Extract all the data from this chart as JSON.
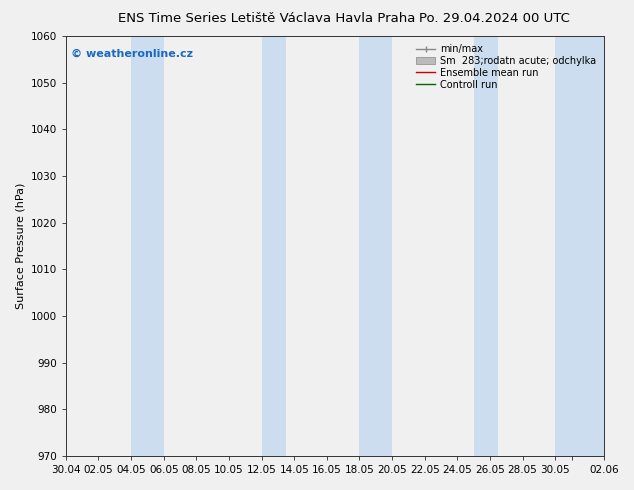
{
  "title_left": "ENS Time Series Letiště Václava Havla Praha",
  "title_right": "Po. 29.04.2024 00 UTC",
  "ylabel": "Surface Pressure (hPa)",
  "ylim": [
    970,
    1060
  ],
  "yticks": [
    970,
    980,
    990,
    1000,
    1010,
    1020,
    1030,
    1040,
    1050,
    1060
  ],
  "xtick_labels": [
    "30.04",
    "02.05",
    "04.05",
    "06.05",
    "08.05",
    "10.05",
    "12.05",
    "14.05",
    "16.05",
    "18.05",
    "20.05",
    "22.05",
    "24.05",
    "26.05",
    "28.05",
    "30.05",
    "",
    "02.06"
  ],
  "x_positions": [
    0,
    2,
    4,
    6,
    8,
    10,
    12,
    14,
    16,
    18,
    20,
    22,
    24,
    26,
    28,
    30,
    31,
    33
  ],
  "xlim": [
    0,
    33
  ],
  "watermark": "© weatheronline.cz",
  "legend_entries": [
    "min/max",
    "Sm  283;rodatn acute; odchylka",
    "Ensemble mean run",
    "Controll run"
  ],
  "bg_color": "#f0f0f0",
  "plot_bg_color": "#f0f0f0",
  "band_color": "#ccddf0",
  "band_positions_start": [
    4,
    12,
    18,
    25,
    30
  ],
  "band_positions_end": [
    6,
    13.5,
    20,
    26.5,
    33
  ],
  "title_fontsize": 9.5,
  "axis_fontsize": 8,
  "tick_fontsize": 7.5,
  "watermark_color": "#1a6abf",
  "watermark_fontsize": 8,
  "ensemble_mean_color": "#cc0000",
  "control_run_color": "#006600",
  "minmax_color": "#888888",
  "spread_color": "#bbbbbb",
  "legend_fontsize": 7
}
